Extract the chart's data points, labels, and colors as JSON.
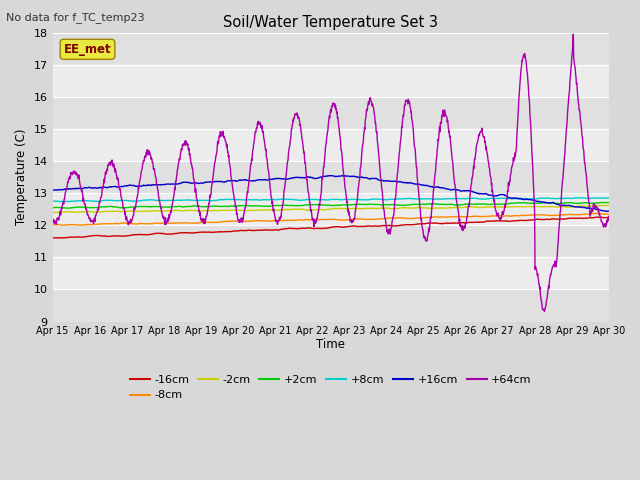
{
  "title": "Soil/Water Temperature Set 3",
  "subtitle": "No data for f_TC_temp23",
  "ylabel": "Temperature (C)",
  "xlabel": "Time",
  "ylim": [
    9.0,
    18.0
  ],
  "yticks": [
    9.0,
    10.0,
    11.0,
    12.0,
    13.0,
    14.0,
    15.0,
    16.0,
    17.0,
    18.0
  ],
  "xtick_labels": [
    "Apr 15",
    "Apr 16",
    "Apr 17",
    "Apr 18",
    "Apr 19",
    "Apr 20",
    "Apr 21",
    "Apr 22",
    "Apr 23",
    "Apr 24",
    "Apr 25",
    "Apr 26",
    "Apr 27",
    "Apr 28",
    "Apr 29",
    "Apr 30"
  ],
  "fig_bg_color": "#d8d8d8",
  "plot_bg_color": "#e8e8e8",
  "band_light": "#ececec",
  "band_dark": "#e0e0e0",
  "grid_color": "#ffffff",
  "legend_label": "EE_met",
  "legend_box_color": "#e8e840",
  "legend_text_color": "#800000",
  "series_colors": {
    "-16cm": "#cc0000",
    "-8cm": "#ff8800",
    "-2cm": "#cccc00",
    "+2cm": "#00cc00",
    "+8cm": "#00cccc",
    "+16cm": "#0000cc",
    "+64cm": "#aa00aa"
  },
  "n_points": 1440,
  "days": 15
}
